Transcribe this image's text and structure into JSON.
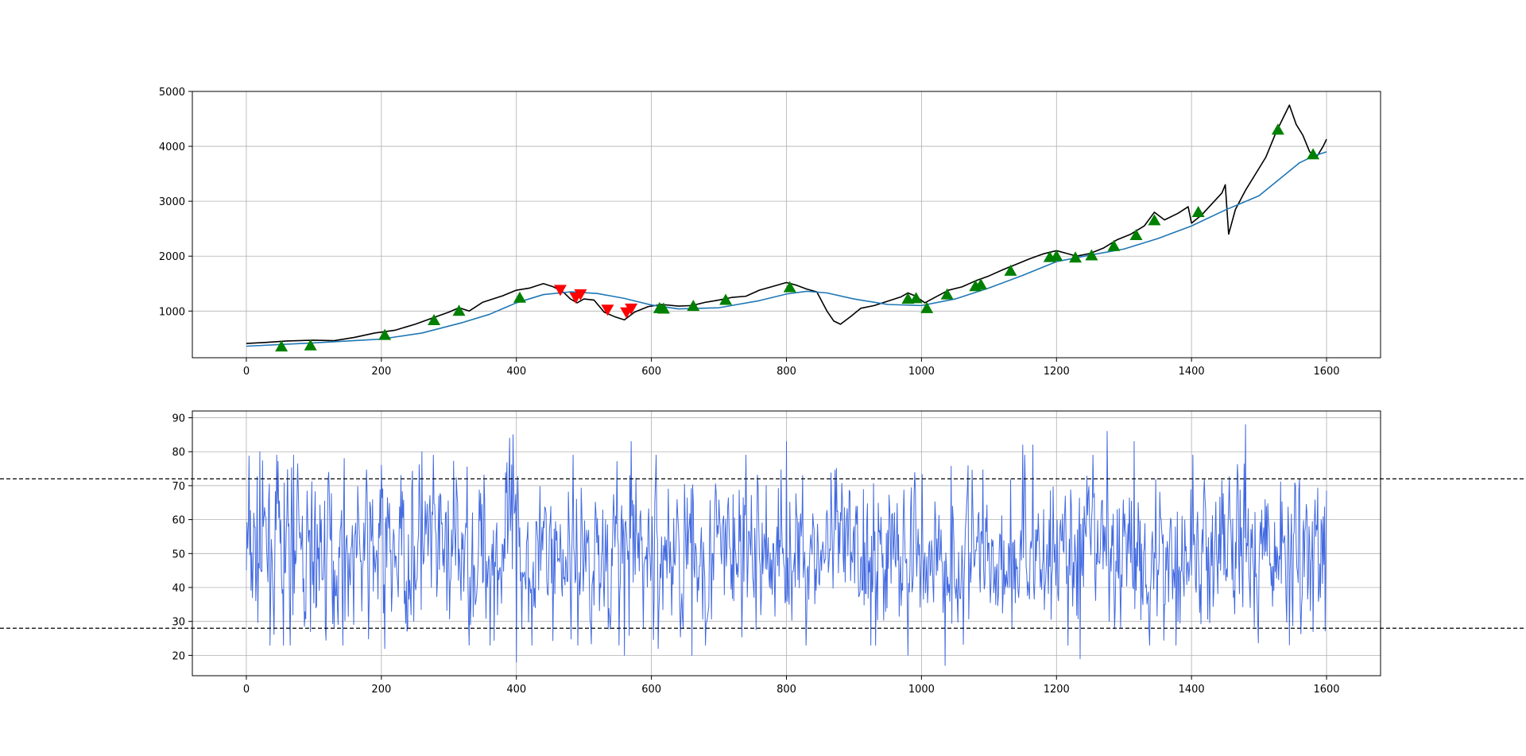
{
  "chart_data": [
    {
      "type": "line",
      "title": "",
      "xlabel": "",
      "ylabel": "",
      "xlim": [
        -80,
        1680
      ],
      "ylim": [
        150,
        5000
      ],
      "xticks": [
        0,
        200,
        400,
        600,
        800,
        1000,
        1200,
        1400,
        1600
      ],
      "yticks": [
        1000,
        2000,
        3000,
        4000,
        5000
      ],
      "grid": true,
      "legend": "none",
      "series": [
        {
          "role": "price",
          "color": "#000000",
          "points": [
            [
              0,
              410
            ],
            [
              30,
              430
            ],
            [
              60,
              455
            ],
            [
              100,
              470
            ],
            [
              130,
              460
            ],
            [
              160,
              520
            ],
            [
              190,
              600
            ],
            [
              220,
              650
            ],
            [
              250,
              760
            ],
            [
              275,
              870
            ],
            [
              300,
              980
            ],
            [
              315,
              1060
            ],
            [
              330,
              1000
            ],
            [
              350,
              1160
            ],
            [
              380,
              1280
            ],
            [
              400,
              1380
            ],
            [
              420,
              1420
            ],
            [
              440,
              1500
            ],
            [
              455,
              1440
            ],
            [
              470,
              1340
            ],
            [
              480,
              1220
            ],
            [
              490,
              1150
            ],
            [
              500,
              1220
            ],
            [
              515,
              1200
            ],
            [
              530,
              980
            ],
            [
              545,
              900
            ],
            [
              560,
              840
            ],
            [
              575,
              980
            ],
            [
              595,
              1080
            ],
            [
              615,
              1120
            ],
            [
              640,
              1090
            ],
            [
              660,
              1100
            ],
            [
              680,
              1160
            ],
            [
              700,
              1200
            ],
            [
              720,
              1250
            ],
            [
              740,
              1270
            ],
            [
              760,
              1380
            ],
            [
              780,
              1450
            ],
            [
              800,
              1520
            ],
            [
              815,
              1470
            ],
            [
              830,
              1400
            ],
            [
              845,
              1350
            ],
            [
              860,
              1000
            ],
            [
              870,
              820
            ],
            [
              880,
              760
            ],
            [
              895,
              900
            ],
            [
              910,
              1050
            ],
            [
              930,
              1100
            ],
            [
              950,
              1180
            ],
            [
              970,
              1260
            ],
            [
              980,
              1330
            ],
            [
              990,
              1280
            ],
            [
              1005,
              1150
            ],
            [
              1020,
              1250
            ],
            [
              1040,
              1380
            ],
            [
              1060,
              1440
            ],
            [
              1080,
              1550
            ],
            [
              1100,
              1640
            ],
            [
              1120,
              1750
            ],
            [
              1140,
              1850
            ],
            [
              1160,
              1950
            ],
            [
              1180,
              2040
            ],
            [
              1200,
              2100
            ],
            [
              1215,
              2050
            ],
            [
              1230,
              2000
            ],
            [
              1250,
              2050
            ],
            [
              1270,
              2150
            ],
            [
              1290,
              2300
            ],
            [
              1310,
              2400
            ],
            [
              1330,
              2550
            ],
            [
              1345,
              2800
            ],
            [
              1360,
              2660
            ],
            [
              1380,
              2780
            ],
            [
              1395,
              2900
            ],
            [
              1400,
              2600
            ],
            [
              1415,
              2750
            ],
            [
              1430,
              2950
            ],
            [
              1445,
              3150
            ],
            [
              1450,
              3300
            ],
            [
              1455,
              2400
            ],
            [
              1465,
              2850
            ],
            [
              1480,
              3200
            ],
            [
              1495,
              3500
            ],
            [
              1510,
              3800
            ],
            [
              1525,
              4250
            ],
            [
              1535,
              4500
            ],
            [
              1545,
              4750
            ],
            [
              1555,
              4400
            ],
            [
              1565,
              4200
            ],
            [
              1575,
              3900
            ],
            [
              1585,
              3800
            ],
            [
              1595,
              4000
            ],
            [
              1600,
              4130
            ]
          ]
        },
        {
          "role": "moving-average",
          "color": "#1f77b4",
          "points": [
            [
              0,
              360
            ],
            [
              100,
              420
            ],
            [
              200,
              490
            ],
            [
              260,
              600
            ],
            [
              320,
              790
            ],
            [
              360,
              940
            ],
            [
              400,
              1150
            ],
            [
              440,
              1300
            ],
            [
              480,
              1350
            ],
            [
              520,
              1320
            ],
            [
              560,
              1230
            ],
            [
              600,
              1110
            ],
            [
              640,
              1040
            ],
            [
              700,
              1060
            ],
            [
              760,
              1190
            ],
            [
              800,
              1310
            ],
            [
              830,
              1360
            ],
            [
              860,
              1330
            ],
            [
              900,
              1220
            ],
            [
              950,
              1120
            ],
            [
              1000,
              1100
            ],
            [
              1050,
              1220
            ],
            [
              1100,
              1420
            ],
            [
              1150,
              1650
            ],
            [
              1200,
              1900
            ],
            [
              1250,
              2020
            ],
            [
              1300,
              2130
            ],
            [
              1350,
              2320
            ],
            [
              1400,
              2550
            ],
            [
              1450,
              2840
            ],
            [
              1500,
              3100
            ],
            [
              1530,
              3400
            ],
            [
              1560,
              3700
            ],
            [
              1580,
              3820
            ],
            [
              1600,
              3900
            ]
          ]
        }
      ],
      "buy_markers": {
        "symbol": "triangle-up",
        "color": "#008000",
        "points": [
          [
            52,
            350
          ],
          [
            95,
            370
          ],
          [
            205,
            560
          ],
          [
            278,
            830
          ],
          [
            315,
            1000
          ],
          [
            405,
            1240
          ],
          [
            612,
            1050
          ],
          [
            618,
            1040
          ],
          [
            662,
            1090
          ],
          [
            710,
            1200
          ],
          [
            805,
            1430
          ],
          [
            980,
            1220
          ],
          [
            992,
            1230
          ],
          [
            1008,
            1050
          ],
          [
            1038,
            1300
          ],
          [
            1080,
            1450
          ],
          [
            1088,
            1480
          ],
          [
            1132,
            1730
          ],
          [
            1190,
            1980
          ],
          [
            1200,
            2000
          ],
          [
            1228,
            1970
          ],
          [
            1252,
            2010
          ],
          [
            1285,
            2180
          ],
          [
            1318,
            2380
          ],
          [
            1345,
            2650
          ],
          [
            1410,
            2800
          ],
          [
            1528,
            4300
          ],
          [
            1580,
            3850
          ]
        ]
      },
      "sell_markers": {
        "symbol": "triangle-down",
        "color": "#ff0000",
        "points": [
          [
            465,
            1390
          ],
          [
            488,
            1250
          ],
          [
            495,
            1310
          ],
          [
            535,
            1030
          ],
          [
            563,
            980
          ],
          [
            570,
            1050
          ]
        ]
      }
    },
    {
      "type": "line",
      "title": "",
      "xlabel": "",
      "ylabel": "",
      "xlim": [
        -80,
        1680
      ],
      "ylim": [
        14,
        92
      ],
      "xticks": [
        0,
        200,
        400,
        600,
        800,
        1000,
        1200,
        1400,
        1600
      ],
      "yticks": [
        20,
        30,
        40,
        50,
        60,
        70,
        80,
        90
      ],
      "grid": true,
      "legend": "none",
      "upper_threshold": 72,
      "lower_threshold": 28,
      "threshold_style": "dashed",
      "series": [
        {
          "role": "oscillator",
          "color": "#4169e1",
          "n_points": 1601,
          "seed": 7,
          "mean": 50,
          "spread": 11,
          "min": 17,
          "max": 89,
          "peaks": [
            [
              20,
              80
            ],
            [
              55,
              23
            ],
            [
              70,
              79
            ],
            [
              95,
              27
            ],
            [
              145,
              78
            ],
            [
              200,
              76
            ],
            [
              205,
              22
            ],
            [
              260,
              80
            ],
            [
              390,
              84
            ],
            [
              395,
              85
            ],
            [
              400,
              18
            ],
            [
              560,
              20
            ],
            [
              570,
              83
            ],
            [
              610,
              22
            ],
            [
              660,
              20
            ],
            [
              800,
              83
            ],
            [
              980,
              20
            ],
            [
              1035,
              17
            ],
            [
              1150,
              82
            ],
            [
              1165,
              82
            ],
            [
              1235,
              19
            ],
            [
              1275,
              86
            ],
            [
              1315,
              83
            ],
            [
              1480,
              88
            ],
            [
              1560,
              72
            ],
            [
              1580,
              27
            ]
          ]
        }
      ]
    }
  ]
}
